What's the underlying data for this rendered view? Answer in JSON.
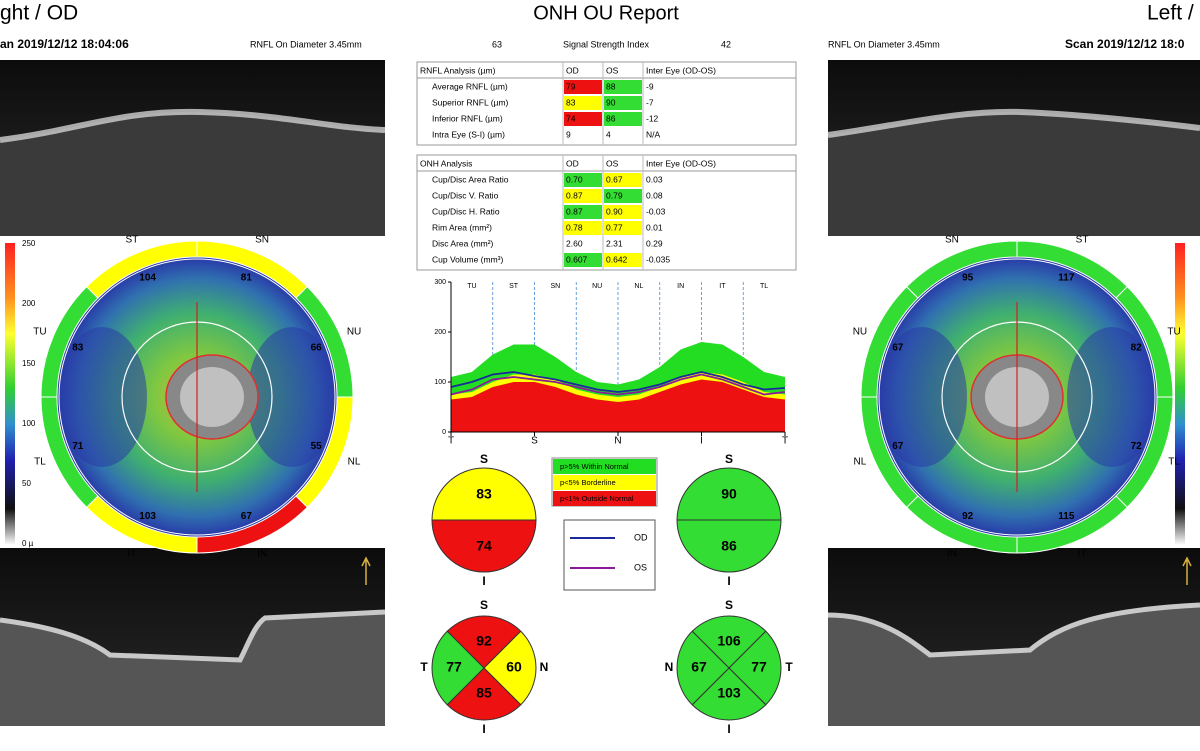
{
  "header": {
    "left_eye": "ght / OD",
    "title": "ONH OU Report",
    "right_eye": "Left /"
  },
  "scan_info": {
    "left_scan": "an 2019/12/12 18:04:06",
    "left_diameter": "RNFL On Diameter 3.45mm",
    "od_signal": "63",
    "signal_label": "Signal Strength Index",
    "os_signal": "42",
    "right_diameter": "RNFL On Diameter 3.45mm",
    "right_scan": "Scan 2019/12/12 18:0"
  },
  "colorbar": {
    "labels": [
      "250",
      "200",
      "150",
      "100",
      "50",
      "0 µ"
    ]
  },
  "od_map": {
    "sectors": [
      {
        "label": "TU",
        "value": "83",
        "color": "#33dd33"
      },
      {
        "label": "ST",
        "value": "104",
        "color": "#ffff00"
      },
      {
        "label": "SN",
        "value": "81",
        "color": "#ffff00"
      },
      {
        "label": "NU",
        "value": "66",
        "color": "#33dd33"
      },
      {
        "label": "NL",
        "value": "55",
        "color": "#ffff00"
      },
      {
        "label": "IN",
        "value": "67",
        "color": "#ee1111"
      },
      {
        "label": "IT",
        "value": "103",
        "color": "#ffff00"
      },
      {
        "label": "TL",
        "value": "71",
        "color": "#33dd33"
      }
    ]
  },
  "os_map": {
    "sectors": [
      {
        "label": "NU",
        "value": "67",
        "color": "#33dd33"
      },
      {
        "label": "SN",
        "value": "95",
        "color": "#33dd33"
      },
      {
        "label": "ST",
        "value": "117",
        "color": "#33dd33"
      },
      {
        "label": "TU",
        "value": "82",
        "color": "#33dd33"
      },
      {
        "label": "TL",
        "value": "72",
        "color": "#33dd33"
      },
      {
        "label": "IT",
        "value": "115",
        "color": "#33dd33"
      },
      {
        "label": "IN",
        "value": "92",
        "color": "#33dd33"
      },
      {
        "label": "NL",
        "value": "67",
        "color": "#33dd33"
      }
    ]
  },
  "rnfl_table": {
    "header": [
      "RNFL Analysis (µm)",
      "OD",
      "OS",
      "Inter Eye (OD-OS)"
    ],
    "rows": [
      [
        "Average RNFL (µm)",
        "79",
        "88",
        "-9"
      ],
      [
        "Superior RNFL (µm)",
        "83",
        "90",
        "-7"
      ],
      [
        "Inferior RNFL (µm)",
        "74",
        "86",
        "-12"
      ],
      [
        "Intra Eye (S-I) (µm)",
        "9",
        "4",
        "N/A"
      ]
    ],
    "cell_colors": [
      [
        "#ee1111",
        "#33dd33"
      ],
      [
        "#ffff00",
        "#33dd33"
      ],
      [
        "#ee1111",
        "#33dd33"
      ],
      [
        null,
        null
      ]
    ]
  },
  "onh_table": {
    "header": [
      "ONH Analysis",
      "OD",
      "OS",
      "Inter Eye (OD-OS)"
    ],
    "rows": [
      [
        "Cup/Disc Area Ratio",
        "0.70",
        "0.67",
        "0.03"
      ],
      [
        "Cup/Disc V. Ratio",
        "0.87",
        "0.79",
        "0.08"
      ],
      [
        "Cup/Disc H. Ratio",
        "0.87",
        "0.90",
        "-0.03"
      ],
      [
        "Rim Area (mm²)",
        "0.78",
        "0.77",
        "0.01"
      ],
      [
        "Disc Area (mm²)",
        "2.60",
        "2.31",
        "0.29"
      ],
      [
        "Cup Volume (mm³)",
        "0.607",
        "0.642",
        "-0.035"
      ]
    ],
    "cell_colors": [
      [
        "#33dd33",
        "#ffff00"
      ],
      [
        "#ffff00",
        "#33dd33"
      ],
      [
        "#33dd33",
        "#ffff00"
      ],
      [
        "#ffff00",
        "#ffff00"
      ],
      [
        null,
        null
      ],
      [
        "#33dd33",
        "#ffff00"
      ]
    ]
  },
  "tsnit": {
    "type": "line",
    "x": [
      0,
      16,
      32,
      48,
      64,
      80,
      96,
      112,
      128,
      144,
      160,
      176,
      192,
      208,
      224,
      240,
      256
    ],
    "xlim": [
      0,
      256
    ],
    "xticks": [
      {
        "value": 0,
        "label": "T"
      },
      {
        "value": 64,
        "label": "S"
      },
      {
        "value": 128,
        "label": "N"
      },
      {
        "value": 192,
        "label": "I"
      },
      {
        "value": 256,
        "label": "T"
      }
    ],
    "ylim": [
      0,
      300
    ],
    "yticks": [
      0,
      100,
      200,
      300
    ],
    "sector_labels": [
      "TU",
      "ST",
      "SN",
      "NU",
      "NL",
      "IN",
      "IT",
      "TL"
    ],
    "series": [
      {
        "name": "p>5% Within Normal",
        "color": "#22dd22",
        "fill": true,
        "values": [
          110,
          120,
          155,
          175,
          175,
          150,
          120,
          100,
          95,
          105,
          130,
          165,
          180,
          175,
          150,
          120,
          110
        ]
      },
      {
        "name": "p<5% Borderline",
        "color": "#ffff00",
        "fill": true,
        "values": [
          75,
          80,
          100,
          115,
          115,
          105,
          85,
          75,
          70,
          75,
          90,
          110,
          120,
          115,
          100,
          80,
          75
        ]
      },
      {
        "name": "p<1% Outside Normal",
        "color": "#ee1111",
        "fill": true,
        "values": [
          65,
          70,
          90,
          100,
          100,
          90,
          75,
          65,
          60,
          65,
          80,
          95,
          105,
          100,
          85,
          70,
          65
        ]
      },
      {
        "name": "OD",
        "color": "#1a2a9a",
        "fill": false,
        "values": [
          90,
          100,
          115,
          120,
          112,
          105,
          95,
          85,
          80,
          85,
          95,
          110,
          120,
          110,
          95,
          85,
          88
        ]
      },
      {
        "name": "OS",
        "color": "#8a1a9a",
        "fill": false,
        "values": [
          75,
          85,
          105,
          110,
          105,
          100,
          90,
          80,
          75,
          80,
          90,
          105,
          115,
          105,
          90,
          75,
          80
        ]
      }
    ]
  },
  "od_sup_inf": {
    "labels": [
      "S",
      "I"
    ],
    "values": [
      "83",
      "74"
    ],
    "colors": [
      "#ffff00",
      "#ee1111"
    ]
  },
  "os_sup_inf": {
    "labels": [
      "S",
      "I"
    ],
    "values": [
      "90",
      "86"
    ],
    "colors": [
      "#33dd33",
      "#33dd33"
    ]
  },
  "od_quadrants": {
    "labels": [
      "S",
      "N",
      "I",
      "T"
    ],
    "values": [
      "92",
      "60",
      "85",
      "77"
    ],
    "colors": [
      "#ee1111",
      "#ffff00",
      "#ee1111",
      "#33dd33"
    ]
  },
  "os_quadrants": {
    "labels": [
      "S",
      "T",
      "I",
      "N"
    ],
    "values": [
      "106",
      "77",
      "103",
      "67"
    ],
    "colors": [
      "#33dd33",
      "#33dd33",
      "#33dd33",
      "#33dd33"
    ]
  }
}
